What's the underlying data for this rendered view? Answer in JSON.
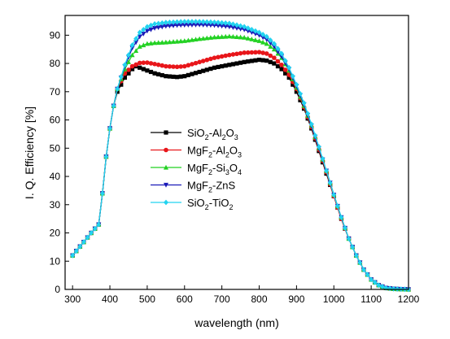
{
  "chart_data": {
    "type": "line",
    "xlabel": "wavelength (nm)",
    "ylabel": "I. Q. Efficiency [%]",
    "xlim": [
      280,
      1200
    ],
    "ylim": [
      0,
      97
    ],
    "xticks": [
      300,
      400,
      500,
      600,
      700,
      800,
      900,
      1000,
      1100,
      1200
    ],
    "yticks": [
      0,
      10,
      20,
      30,
      40,
      50,
      60,
      70,
      80,
      90
    ],
    "grid": false,
    "legend_position": "center-left",
    "series": [
      {
        "name": "SiO2-Al2O3",
        "label_parts": [
          [
            "SiO",
            ""
          ],
          [
            "2",
            "sub"
          ],
          [
            "-Al",
            ""
          ],
          [
            "2",
            "sub"
          ],
          [
            "O",
            ""
          ],
          [
            "3",
            "sub"
          ]
        ],
        "color": "#000000",
        "marker": "square",
        "points": [
          [
            300,
            12
          ],
          [
            350,
            20
          ],
          [
            370,
            23
          ],
          [
            380,
            34
          ],
          [
            390,
            47
          ],
          [
            400,
            57
          ],
          [
            410,
            65
          ],
          [
            420,
            70
          ],
          [
            440,
            75
          ],
          [
            460,
            78
          ],
          [
            470,
            79
          ],
          [
            480,
            78.5
          ],
          [
            500,
            77.5
          ],
          [
            520,
            76.5
          ],
          [
            550,
            75.5
          ],
          [
            580,
            75.2
          ],
          [
            600,
            75.5
          ],
          [
            640,
            77
          ],
          [
            680,
            78.5
          ],
          [
            720,
            79.5
          ],
          [
            760,
            80.5
          ],
          [
            800,
            81.3
          ],
          [
            820,
            81
          ],
          [
            840,
            80
          ],
          [
            860,
            78
          ],
          [
            880,
            75
          ],
          [
            900,
            70
          ],
          [
            920,
            64
          ],
          [
            940,
            57
          ],
          [
            960,
            49
          ],
          [
            980,
            41
          ],
          [
            1000,
            33
          ],
          [
            1020,
            25
          ],
          [
            1040,
            18
          ],
          [
            1060,
            12
          ],
          [
            1080,
            7
          ],
          [
            1100,
            3.5
          ],
          [
            1120,
            1.5
          ],
          [
            1140,
            0.5
          ],
          [
            1160,
            0.2
          ],
          [
            1180,
            0.1
          ],
          [
            1200,
            0
          ]
        ]
      },
      {
        "name": "MgF2-Al2O3",
        "label_parts": [
          [
            "MgF",
            ""
          ],
          [
            "2",
            "sub"
          ],
          [
            "-Al",
            ""
          ],
          [
            "2",
            "sub"
          ],
          [
            "O",
            ""
          ],
          [
            "3",
            "sub"
          ]
        ],
        "color": "#e8161a",
        "marker": "circle",
        "points": [
          [
            300,
            12
          ],
          [
            350,
            20
          ],
          [
            370,
            23
          ],
          [
            380,
            34
          ],
          [
            390,
            47
          ],
          [
            400,
            57
          ],
          [
            410,
            65
          ],
          [
            420,
            71
          ],
          [
            440,
            76.5
          ],
          [
            460,
            79
          ],
          [
            480,
            80.2
          ],
          [
            500,
            80.3
          ],
          [
            520,
            79.8
          ],
          [
            550,
            79
          ],
          [
            580,
            78.8
          ],
          [
            600,
            79
          ],
          [
            640,
            80.5
          ],
          [
            680,
            82
          ],
          [
            720,
            83
          ],
          [
            760,
            83.8
          ],
          [
            800,
            84
          ],
          [
            820,
            83.5
          ],
          [
            840,
            82
          ],
          [
            860,
            79.5
          ],
          [
            880,
            76
          ],
          [
            900,
            71
          ],
          [
            920,
            64.5
          ],
          [
            940,
            57.5
          ],
          [
            960,
            49.5
          ],
          [
            980,
            41.5
          ],
          [
            1000,
            33
          ],
          [
            1020,
            25
          ],
          [
            1040,
            18
          ],
          [
            1060,
            12
          ],
          [
            1080,
            7
          ],
          [
            1100,
            3.5
          ],
          [
            1120,
            1.5
          ],
          [
            1140,
            0.5
          ],
          [
            1160,
            0.2
          ],
          [
            1180,
            0.1
          ],
          [
            1200,
            0
          ]
        ]
      },
      {
        "name": "MgF2-Si3O4",
        "label_parts": [
          [
            "MgF",
            ""
          ],
          [
            "2",
            "sub"
          ],
          [
            "-Si",
            ""
          ],
          [
            "3",
            "sub"
          ],
          [
            "O",
            ""
          ],
          [
            "4",
            "sub"
          ]
        ],
        "color": "#22d122",
        "marker": "triangle-up",
        "points": [
          [
            300,
            12
          ],
          [
            350,
            20
          ],
          [
            370,
            23
          ],
          [
            380,
            34
          ],
          [
            390,
            47
          ],
          [
            400,
            57
          ],
          [
            410,
            65
          ],
          [
            420,
            71
          ],
          [
            440,
            78
          ],
          [
            460,
            83
          ],
          [
            480,
            86
          ],
          [
            500,
            87
          ],
          [
            520,
            87.3
          ],
          [
            550,
            87.5
          ],
          [
            580,
            87.8
          ],
          [
            600,
            88
          ],
          [
            640,
            88.7
          ],
          [
            680,
            89.3
          ],
          [
            720,
            89.6
          ],
          [
            760,
            89.2
          ],
          [
            800,
            88
          ],
          [
            820,
            87
          ],
          [
            840,
            85
          ],
          [
            860,
            82
          ],
          [
            880,
            77.5
          ],
          [
            900,
            71.5
          ],
          [
            920,
            65
          ],
          [
            940,
            58
          ],
          [
            960,
            50
          ],
          [
            980,
            42
          ],
          [
            1000,
            33.5
          ],
          [
            1020,
            25.5
          ],
          [
            1040,
            18
          ],
          [
            1060,
            12
          ],
          [
            1080,
            7
          ],
          [
            1100,
            3.5
          ],
          [
            1120,
            1.5
          ],
          [
            1140,
            0.5
          ],
          [
            1160,
            0.2
          ],
          [
            1180,
            0.1
          ],
          [
            1200,
            0
          ]
        ]
      },
      {
        "name": "MgF2-ZnS",
        "label_parts": [
          [
            "MgF",
            ""
          ],
          [
            "2",
            "sub"
          ],
          [
            "-ZnS",
            ""
          ]
        ],
        "color": "#1a1ab8",
        "marker": "triangle-down",
        "points": [
          [
            300,
            12
          ],
          [
            350,
            20
          ],
          [
            370,
            23
          ],
          [
            380,
            34
          ],
          [
            390,
            47
          ],
          [
            400,
            57
          ],
          [
            410,
            65
          ],
          [
            420,
            71
          ],
          [
            440,
            79
          ],
          [
            460,
            85.5
          ],
          [
            480,
            89.5
          ],
          [
            500,
            91.5
          ],
          [
            520,
            92.5
          ],
          [
            550,
            93.2
          ],
          [
            580,
            93.5
          ],
          [
            600,
            93.6
          ],
          [
            640,
            93.7
          ],
          [
            680,
            93.5
          ],
          [
            720,
            93
          ],
          [
            760,
            92
          ],
          [
            800,
            90
          ],
          [
            820,
            88.5
          ],
          [
            840,
            86
          ],
          [
            860,
            82.5
          ],
          [
            880,
            78
          ],
          [
            900,
            72
          ],
          [
            920,
            65.5
          ],
          [
            940,
            58
          ],
          [
            960,
            50
          ],
          [
            980,
            42
          ],
          [
            1000,
            33.5
          ],
          [
            1020,
            25.5
          ],
          [
            1040,
            18
          ],
          [
            1060,
            12
          ],
          [
            1080,
            7
          ],
          [
            1100,
            3.5
          ],
          [
            1120,
            1.5
          ],
          [
            1140,
            0.5
          ],
          [
            1160,
            0.2
          ],
          [
            1180,
            0.1
          ],
          [
            1200,
            0
          ]
        ]
      },
      {
        "name": "SiO2-TiO2",
        "label_parts": [
          [
            "SiO",
            ""
          ],
          [
            "2",
            "sub"
          ],
          [
            "-TiO",
            ""
          ],
          [
            "2",
            "sub"
          ]
        ],
        "color": "#22d3f0",
        "marker": "diamond",
        "points": [
          [
            300,
            12
          ],
          [
            350,
            20
          ],
          [
            370,
            23
          ],
          [
            380,
            34
          ],
          [
            390,
            47
          ],
          [
            400,
            57
          ],
          [
            410,
            65
          ],
          [
            420,
            71
          ],
          [
            440,
            79.5
          ],
          [
            460,
            86.5
          ],
          [
            480,
            91
          ],
          [
            500,
            93
          ],
          [
            520,
            94
          ],
          [
            550,
            94.5
          ],
          [
            580,
            94.7
          ],
          [
            600,
            94.8
          ],
          [
            640,
            94.8
          ],
          [
            680,
            94.6
          ],
          [
            720,
            94.2
          ],
          [
            760,
            93
          ],
          [
            800,
            91
          ],
          [
            820,
            89.5
          ],
          [
            840,
            87
          ],
          [
            860,
            83.5
          ],
          [
            880,
            78.5
          ],
          [
            900,
            72.5
          ],
          [
            920,
            66
          ],
          [
            940,
            58.5
          ],
          [
            960,
            50.5
          ],
          [
            980,
            42
          ],
          [
            1000,
            33.5
          ],
          [
            1020,
            25.5
          ],
          [
            1040,
            18
          ],
          [
            1060,
            12
          ],
          [
            1080,
            7
          ],
          [
            1100,
            3.5
          ],
          [
            1120,
            1.5
          ],
          [
            1140,
            0.5
          ],
          [
            1160,
            0.2
          ],
          [
            1180,
            0.1
          ],
          [
            1200,
            0
          ]
        ]
      }
    ]
  }
}
